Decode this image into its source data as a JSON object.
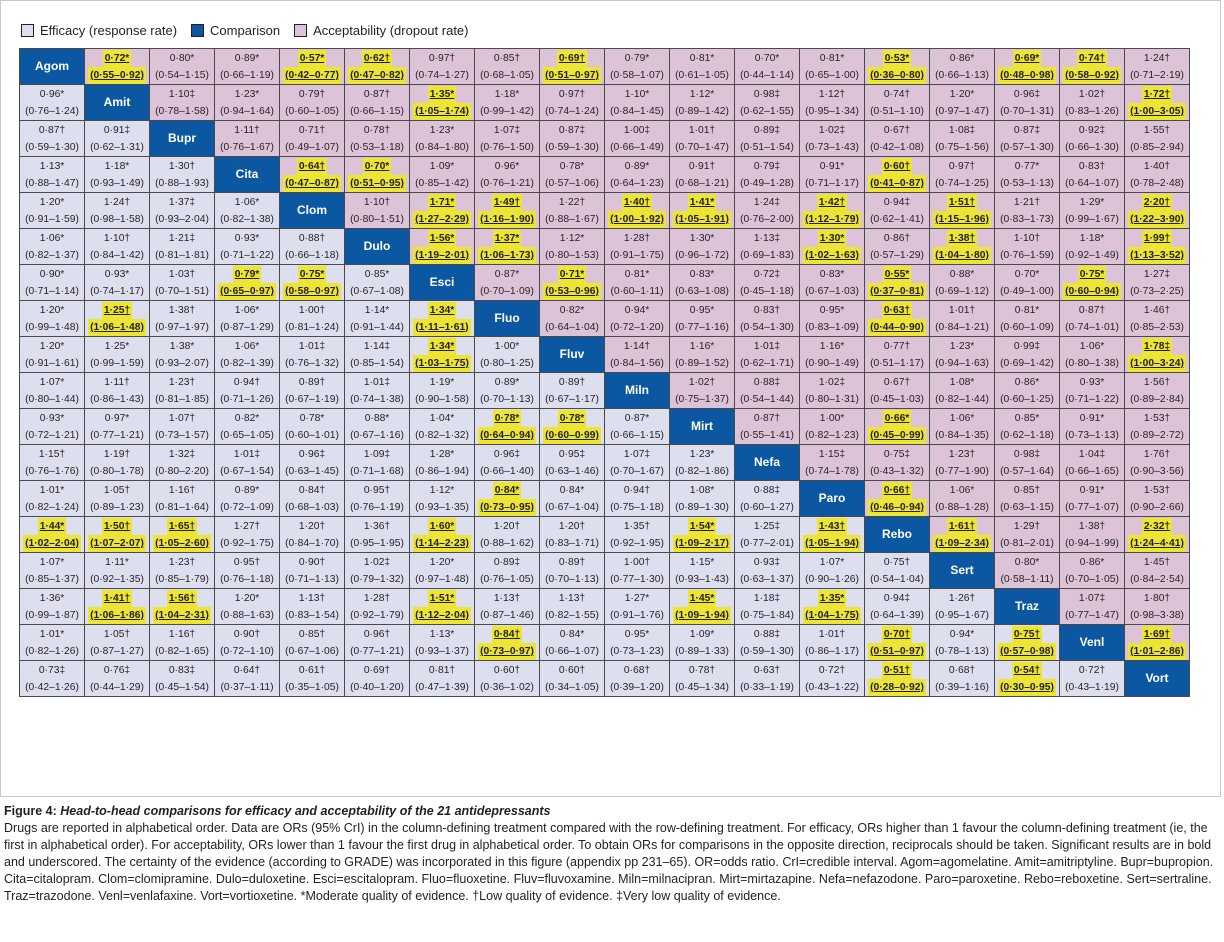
{
  "legend": {
    "efficacy_label": "Efficacy (response rate)",
    "comparison_label": "Comparison",
    "acceptability_label": "Acceptability (dropout rate)"
  },
  "colors": {
    "efficacy": "#dddfef",
    "comparison": "#0b57a1",
    "acceptability": "#ddc3d8",
    "highlight": "#ede534"
  },
  "drugs": [
    "Agom",
    "Amit",
    "Bupr",
    "Cita",
    "Clom",
    "Dulo",
    "Esci",
    "Fluo",
    "Fluv",
    "Miln",
    "Mirt",
    "Nefa",
    "Paro",
    "Rebo",
    "Sert",
    "Traz",
    "Venl",
    "Vort"
  ],
  "rows": [
    [
      [
        "",
        ""
      ],
      [
        "0·72*",
        "(0·55–0·92)"
      ],
      [
        "0·80*",
        "(0·54–1·15)"
      ],
      [
        "0·89*",
        "(0·66–1·19)"
      ],
      [
        "0·57*",
        "(0·42–0·77)"
      ],
      [
        "0·62†",
        "(0·47–0·82)"
      ],
      [
        "0·97†",
        "(0·74–1·27)"
      ],
      [
        "0·85†",
        "(0·68–1·05)"
      ],
      [
        "0·69†",
        "(0·51–0·97)"
      ],
      [
        "0·79*",
        "(0·58–1·07)"
      ],
      [
        "0·81*",
        "(0·61–1·05)"
      ],
      [
        "0·70*",
        "(0·44–1·14)"
      ],
      [
        "0·81*",
        "(0·65–1·00)"
      ],
      [
        "0·53*",
        "(0·36–0·80)"
      ],
      [
        "0·86*",
        "(0·66–1·13)"
      ],
      [
        "0·69*",
        "(0·48–0·98)"
      ],
      [
        "0·74†",
        "(0·58–0·92)"
      ],
      [
        "1·24†",
        "(0·71–2·19)"
      ]
    ],
    [
      [
        "0·96*",
        "(0·76–1·24)"
      ],
      [
        "",
        ""
      ],
      [
        "1·10‡",
        "(0·78–1·58)"
      ],
      [
        "1·23*",
        "(0·94–1·64)"
      ],
      [
        "0·79†",
        "(0·60–1·05)"
      ],
      [
        "0·87†",
        "(0·66–1·15)"
      ],
      [
        "1·35*",
        "(1·05–1·74)"
      ],
      [
        "1·18*",
        "(0·99–1·42)"
      ],
      [
        "0·97†",
        "(0·74–1·24)"
      ],
      [
        "1·10*",
        "(0·84–1·45)"
      ],
      [
        "1·12*",
        "(0·89–1·42)"
      ],
      [
        "0·98‡",
        "(0·62–1·55)"
      ],
      [
        "1·12†",
        "(0·95–1·34)"
      ],
      [
        "0·74†",
        "(0·51–1·10)"
      ],
      [
        "1·20*",
        "(0·97–1·47)"
      ],
      [
        "0·96‡",
        "(0·70–1·31)"
      ],
      [
        "1·02†",
        "(0·83–1·26)"
      ],
      [
        "1·72†",
        "(1·00–3·05)"
      ]
    ],
    [
      [
        "0·87†",
        "(0·59–1·30)"
      ],
      [
        "0·91‡",
        "(0·62–1·31)"
      ],
      [
        "",
        ""
      ],
      [
        "1·11†",
        "(0·76–1·67)"
      ],
      [
        "0·71†",
        "(0·49–1·07)"
      ],
      [
        "0·78†",
        "(0·53–1·18)"
      ],
      [
        "1·23*",
        "(0·84–1·80)"
      ],
      [
        "1·07‡",
        "(0·76–1·50)"
      ],
      [
        "0·87‡",
        "(0·59–1·30)"
      ],
      [
        "1·00‡",
        "(0·66–1·49)"
      ],
      [
        "1·01†",
        "(0·70–1·47)"
      ],
      [
        "0·89‡",
        "(0·51–1·54)"
      ],
      [
        "1·02‡",
        "(0·73–1·43)"
      ],
      [
        "0·67†",
        "(0·42–1·08)"
      ],
      [
        "1·08‡",
        "(0·75–1·56)"
      ],
      [
        "0·87‡",
        "(0·57–1·30)"
      ],
      [
        "0·92‡",
        "(0·66–1·30)"
      ],
      [
        "1·55†",
        "(0·85–2·94)"
      ]
    ],
    [
      [
        "1·13*",
        "(0·88–1·47)"
      ],
      [
        "1·18*",
        "(0·93–1·49)"
      ],
      [
        "1·30†",
        "(0·88–1·93)"
      ],
      [
        "",
        ""
      ],
      [
        "0·64†",
        "(0·47–0·87)"
      ],
      [
        "0·70*",
        "(0·51–0·95)"
      ],
      [
        "1·09*",
        "(0·85–1·42)"
      ],
      [
        "0·96*",
        "(0·76–1·21)"
      ],
      [
        "0·78*",
        "(0·57–1·06)"
      ],
      [
        "0·89*",
        "(0·64–1·23)"
      ],
      [
        "0·91†",
        "(0·68–1·21)"
      ],
      [
        "0·79‡",
        "(0·49–1·28)"
      ],
      [
        "0·91*",
        "(0·71–1·17)"
      ],
      [
        "0·60†",
        "(0·41–0·87)"
      ],
      [
        "0·97†",
        "(0·74–1·25)"
      ],
      [
        "0·77*",
        "(0·53–1·13)"
      ],
      [
        "0·83†",
        "(0·64–1·07)"
      ],
      [
        "1·40†",
        "(0·78–2·48)"
      ]
    ],
    [
      [
        "1·20*",
        "(0·91–1·59)"
      ],
      [
        "1·24†",
        "(0·98–1·58)"
      ],
      [
        "1·37‡",
        "(0·93–2·04)"
      ],
      [
        "1·06*",
        "(0·82–1·38)"
      ],
      [
        "",
        ""
      ],
      [
        "1·10†",
        "(0·80–1·51)"
      ],
      [
        "1·71*",
        "(1·27–2·29)"
      ],
      [
        "1·49†",
        "(1·16–1·90)"
      ],
      [
        "1·22†",
        "(0·88–1·67)"
      ],
      [
        "1·40†",
        "(1·00–1·92)"
      ],
      [
        "1·41*",
        "(1·05–1·91)"
      ],
      [
        "1·24‡",
        "(0·76–2·00)"
      ],
      [
        "1·42†",
        "(1·12–1·79)"
      ],
      [
        "0·94‡",
        "(0·62–1·41)"
      ],
      [
        "1·51†",
        "(1·15–1·96)"
      ],
      [
        "1·21†",
        "(0·83–1·73)"
      ],
      [
        "1·29*",
        "(0·99–1·67)"
      ],
      [
        "2·20†",
        "(1·22–3·90)"
      ]
    ],
    [
      [
        "1·06*",
        "(0·82–1·37)"
      ],
      [
        "1·10†",
        "(0·84–1·42)"
      ],
      [
        "1·21‡",
        "(0·81–1·81)"
      ],
      [
        "0·93*",
        "(0·71–1·22)"
      ],
      [
        "0·88†",
        "(0·66–1·18)"
      ],
      [
        "",
        ""
      ],
      [
        "1·56*",
        "(1·19–2·01)"
      ],
      [
        "1·37*",
        "(1·06–1·73)"
      ],
      [
        "1·12*",
        "(0·80–1·53)"
      ],
      [
        "1·28†",
        "(0·91–1·75)"
      ],
      [
        "1·30*",
        "(0·96–1·72)"
      ],
      [
        "1·13‡",
        "(0·69–1·83)"
      ],
      [
        "1·30*",
        "(1·02–1·63)"
      ],
      [
        "0·86†",
        "(0·57–1·29)"
      ],
      [
        "1·38†",
        "(1·04–1·80)"
      ],
      [
        "1·10†",
        "(0·76–1·59)"
      ],
      [
        "1·18*",
        "(0·92–1·49)"
      ],
      [
        "1·99†",
        "(1·13–3·52)"
      ]
    ],
    [
      [
        "0·90*",
        "(0·71–1·14)"
      ],
      [
        "0·93*",
        "(0·74–1·17)"
      ],
      [
        "1·03†",
        "(0·70–1·51)"
      ],
      [
        "0·79*",
        "(0·65–0·97)"
      ],
      [
        "0·75*",
        "(0·58–0·97)"
      ],
      [
        "0·85*",
        "(0·67–1·08)"
      ],
      [
        "",
        ""
      ],
      [
        "0·87*",
        "(0·70–1·09)"
      ],
      [
        "0·71*",
        "(0·53–0·96)"
      ],
      [
        "0·81*",
        "(0·60–1·11)"
      ],
      [
        "0·83*",
        "(0·63–1·08)"
      ],
      [
        "0·72‡",
        "(0·45–1·18)"
      ],
      [
        "0·83*",
        "(0·67–1·03)"
      ],
      [
        "0·55*",
        "(0·37–0·81)"
      ],
      [
        "0·88*",
        "(0·69–1·12)"
      ],
      [
        "0·70*",
        "(0·49–1·00)"
      ],
      [
        "0·75*",
        "(0·60–0·94)"
      ],
      [
        "1·27‡",
        "(0·73–2·25)"
      ]
    ],
    [
      [
        "1·20*",
        "(0·99–1·48)"
      ],
      [
        "1·25†",
        "(1·06–1·48)"
      ],
      [
        "1·38†",
        "(0·97–1·97)"
      ],
      [
        "1·06*",
        "(0·87–1·29)"
      ],
      [
        "1·00†",
        "(0·81–1·24)"
      ],
      [
        "1·14*",
        "(0·91–1·44)"
      ],
      [
        "1·34*",
        "(1·11–1·61)"
      ],
      [
        "",
        ""
      ],
      [
        "0·82*",
        "(0·64–1·04)"
      ],
      [
        "0·94*",
        "(0·72–1·20)"
      ],
      [
        "0·95*",
        "(0·77–1·16)"
      ],
      [
        "0·83†",
        "(0·54–1·30)"
      ],
      [
        "0·95*",
        "(0·83–1·09)"
      ],
      [
        "0·63†",
        "(0·44–0·90)"
      ],
      [
        "1·01†",
        "(0·84–1·21)"
      ],
      [
        "0·81*",
        "(0·60–1·09)"
      ],
      [
        "0·87†",
        "(0·74–1·01)"
      ],
      [
        "1·46†",
        "(0·85–2·53)"
      ]
    ],
    [
      [
        "1·20*",
        "(0·91–1·61)"
      ],
      [
        "1·25*",
        "(0·99–1·59)"
      ],
      [
        "1·38*",
        "(0·93–2·07)"
      ],
      [
        "1·06*",
        "(0·82–1·39)"
      ],
      [
        "1·01‡",
        "(0·76–1·32)"
      ],
      [
        "1·14‡",
        "(0·85–1·54)"
      ],
      [
        "1·34*",
        "(1·03–1·75)"
      ],
      [
        "1·00*",
        "(0·80–1·25)"
      ],
      [
        "",
        ""
      ],
      [
        "1·14†",
        "(0·84–1·56)"
      ],
      [
        "1·16*",
        "(0·89–1·52)"
      ],
      [
        "1·01‡",
        "(0·62–1·71)"
      ],
      [
        "1·16*",
        "(0·90–1·49)"
      ],
      [
        "0·77†",
        "(0·51–1·17)"
      ],
      [
        "1·23*",
        "(0·94–1·63)"
      ],
      [
        "0·99‡",
        "(0·69–1·42)"
      ],
      [
        "1·06*",
        "(0·80–1·38)"
      ],
      [
        "1·78‡",
        "(1·00–3·24)"
      ]
    ],
    [
      [
        "1·07*",
        "(0·80–1·44)"
      ],
      [
        "1·11†",
        "(0·86–1·43)"
      ],
      [
        "1·23†",
        "(0·81–1·85)"
      ],
      [
        "0·94†",
        "(0·71–1·26)"
      ],
      [
        "0·89†",
        "(0·67–1·19)"
      ],
      [
        "1·01‡",
        "(0·74–1·38)"
      ],
      [
        "1·19*",
        "(0·90–1·58)"
      ],
      [
        "0·89*",
        "(0·70–1·13)"
      ],
      [
        "0·89†",
        "(0·67–1·17)"
      ],
      [
        "",
        ""
      ],
      [
        "1·02†",
        "(0·75–1·37)"
      ],
      [
        "0·88‡",
        "(0·54–1·44)"
      ],
      [
        "1·02‡",
        "(0·80–1·31)"
      ],
      [
        "0·67†",
        "(0·45–1·03)"
      ],
      [
        "1·08*",
        "(0·82–1·44)"
      ],
      [
        "0·86*",
        "(0·60–1·25)"
      ],
      [
        "0·93*",
        "(0·71–1·22)"
      ],
      [
        "1·56†",
        "(0·89–2·84)"
      ]
    ],
    [
      [
        "0·93*",
        "(0·72–1·21)"
      ],
      [
        "0·97*",
        "(0·77–1·21)"
      ],
      [
        "1·07†",
        "(0·73–1·57)"
      ],
      [
        "0·82*",
        "(0·65–1·05)"
      ],
      [
        "0·78*",
        "(0·60–1·01)"
      ],
      [
        "0·88*",
        "(0·67–1·16)"
      ],
      [
        "1·04*",
        "(0·82–1·32)"
      ],
      [
        "0·78*",
        "(0·64–0·94)"
      ],
      [
        "0·78*",
        "(0·60–0·99)"
      ],
      [
        "0·87*",
        "(0·66–1·15)"
      ],
      [
        "",
        ""
      ],
      [
        "0·87†",
        "(0·55–1·41)"
      ],
      [
        "1·00*",
        "(0·82–1·23)"
      ],
      [
        "0·66*",
        "(0·45–0·99)"
      ],
      [
        "1·06*",
        "(0·84–1·35)"
      ],
      [
        "0·85*",
        "(0·62–1·18)"
      ],
      [
        "0·91*",
        "(0·73–1·13)"
      ],
      [
        "1·53†",
        "(0·89–2·72)"
      ]
    ],
    [
      [
        "1·15†",
        "(0·76–1·76)"
      ],
      [
        "1·19†",
        "(0·80–1·78)"
      ],
      [
        "1·32‡",
        "(0·80–2·20)"
      ],
      [
        "1·01‡",
        "(0·67–1·54)"
      ],
      [
        "0·96‡",
        "(0·63–1·45)"
      ],
      [
        "1·09‡",
        "(0·71–1·68)"
      ],
      [
        "1·28*",
        "(0·86–1·94)"
      ],
      [
        "0·96‡",
        "(0·66–1·40)"
      ],
      [
        "0·95‡",
        "(0·63–1·46)"
      ],
      [
        "1·07‡",
        "(0·70–1·67)"
      ],
      [
        "1·23*",
        "(0·82–1·86)"
      ],
      [
        "",
        ""
      ],
      [
        "1·15‡",
        "(0·74–1·78)"
      ],
      [
        "0·75‡",
        "(0·43–1·32)"
      ],
      [
        "1·23†",
        "(0·77–1·90)"
      ],
      [
        "0·98‡",
        "(0·57–1·64)"
      ],
      [
        "1·04‡",
        "(0·66–1·65)"
      ],
      [
        "1·76†",
        "(0·90–3·56)"
      ]
    ],
    [
      [
        "1·01*",
        "(0·82–1·24)"
      ],
      [
        "1·05†",
        "(0·89–1·23)"
      ],
      [
        "1·16†",
        "(0·81–1·64)"
      ],
      [
        "0·89*",
        "(0·72–1·09)"
      ],
      [
        "0·84†",
        "(0·68–1·03)"
      ],
      [
        "0·95†",
        "(0·76–1·19)"
      ],
      [
        "1·12*",
        "(0·93–1·35)"
      ],
      [
        "0·84*",
        "(0·73–0·95)"
      ],
      [
        "0·84*",
        "(0·67–1·04)"
      ],
      [
        "0·94†",
        "(0·75–1·18)"
      ],
      [
        "1·08*",
        "(0·89–1·30)"
      ],
      [
        "0·88‡",
        "(0·60–1·27)"
      ],
      [
        "",
        ""
      ],
      [
        "0·66†",
        "(0·46–0·94)"
      ],
      [
        "1·06*",
        "(0·88–1·28)"
      ],
      [
        "0·85†",
        "(0·63–1·15)"
      ],
      [
        "0·91*",
        "(0·77–1·07)"
      ],
      [
        "1·53†",
        "(0·90–2·66)"
      ]
    ],
    [
      [
        "1·44*",
        "(1·02–2·04)"
      ],
      [
        "1·50†",
        "(1·07–2·07)"
      ],
      [
        "1·65†",
        "(1·05–2·60)"
      ],
      [
        "1·27†",
        "(0·92–1·75)"
      ],
      [
        "1·20†",
        "(0·84–1·70)"
      ],
      [
        "1·36†",
        "(0·95–1·95)"
      ],
      [
        "1·60*",
        "(1·14–2·23)"
      ],
      [
        "1·20†",
        "(0·88–1·62)"
      ],
      [
        "1·20†",
        "(0·83–1·71)"
      ],
      [
        "1·35†",
        "(0·92–1·95)"
      ],
      [
        "1·54*",
        "(1·09–2·17)"
      ],
      [
        "1·25‡",
        "(0·77–2·01)"
      ],
      [
        "1·43†",
        "(1·05–1·94)"
      ],
      [
        "",
        ""
      ],
      [
        "1·61†",
        "(1·09–2·34)"
      ],
      [
        "1·29†",
        "(0·81–2·01)"
      ],
      [
        "1·38†",
        "(0·94–1·99)"
      ],
      [
        "2·32†",
        "(1·24–4·41)"
      ]
    ],
    [
      [
        "1·07*",
        "(0·85–1·37)"
      ],
      [
        "1·11*",
        "(0·92–1·35)"
      ],
      [
        "1·23†",
        "(0·85–1·79)"
      ],
      [
        "0·95†",
        "(0·76–1·18)"
      ],
      [
        "0·90†",
        "(0·71–1·13)"
      ],
      [
        "1·02‡",
        "(0·79–1·32)"
      ],
      [
        "1·20*",
        "(0·97–1·48)"
      ],
      [
        "0·89‡",
        "(0·76–1·05)"
      ],
      [
        "0·89†",
        "(0·70–1·13)"
      ],
      [
        "1·00†",
        "(0·77–1·30)"
      ],
      [
        "1·15*",
        "(0·93–1·43)"
      ],
      [
        "0·93‡",
        "(0·63–1·37)"
      ],
      [
        "1·07*",
        "(0·90–1·26)"
      ],
      [
        "0·75†",
        "(0·54–1·04)"
      ],
      [
        "",
        ""
      ],
      [
        "0·80*",
        "(0·58–1·11)"
      ],
      [
        "0·86*",
        "(0·70–1·05)"
      ],
      [
        "1·45†",
        "(0·84–2·54)"
      ]
    ],
    [
      [
        "1·36*",
        "(0·99–1·87)"
      ],
      [
        "1·41†",
        "(1·06–1·86)"
      ],
      [
        "1·56†",
        "(1·04–2·31)"
      ],
      [
        "1·20*",
        "(0·88–1·63)"
      ],
      [
        "1·13†",
        "(0·83–1·54)"
      ],
      [
        "1·28†",
        "(0·92–1·79)"
      ],
      [
        "1·51*",
        "(1·12–2·04)"
      ],
      [
        "1·13†",
        "(0·87–1·46)"
      ],
      [
        "1·13†",
        "(0·82–1·55)"
      ],
      [
        "1·27*",
        "(0·91–1·76)"
      ],
      [
        "1·45*",
        "(1·09–1·94)"
      ],
      [
        "1·18‡",
        "(0·75–1·84)"
      ],
      [
        "1·35*",
        "(1·04–1·75)"
      ],
      [
        "0·94‡",
        "(0·64–1·39)"
      ],
      [
        "1·26†",
        "(0·95–1·67)"
      ],
      [
        "",
        ""
      ],
      [
        "1·07‡",
        "(0·77–1·47)"
      ],
      [
        "1·80†",
        "(0·98–3·38)"
      ]
    ],
    [
      [
        "1·01*",
        "(0·82–1·26)"
      ],
      [
        "1·05†",
        "(0·87–1·27)"
      ],
      [
        "1·16†",
        "(0·82–1·65)"
      ],
      [
        "0·90†",
        "(0·72–1·10)"
      ],
      [
        "0·85†",
        "(0·67–1·06)"
      ],
      [
        "0·96†",
        "(0·77–1·21)"
      ],
      [
        "1·13*",
        "(0·93–1·37)"
      ],
      [
        "0·84†",
        "(0·73–0·97)"
      ],
      [
        "0·84*",
        "(0·66–1·07)"
      ],
      [
        "0·95*",
        "(0·73–1·23)"
      ],
      [
        "1·09*",
        "(0·89–1·33)"
      ],
      [
        "0·88‡",
        "(0·59–1·30)"
      ],
      [
        "1·01†",
        "(0·86–1·17)"
      ],
      [
        "0·70†",
        "(0·51–0·97)"
      ],
      [
        "0·94*",
        "(0·78–1·13)"
      ],
      [
        "0·75†",
        "(0·57–0·98)"
      ],
      [
        "",
        ""
      ],
      [
        "1·69†",
        "(1·01–2·86)"
      ]
    ],
    [
      [
        "0·73‡",
        "(0·42–1·26)"
      ],
      [
        "0·76‡",
        "(0·44–1·29)"
      ],
      [
        "0·83‡",
        "(0·45–1·54)"
      ],
      [
        "0·64†",
        "(0·37–1·11)"
      ],
      [
        "0·61†",
        "(0·35–1·05)"
      ],
      [
        "0·69†",
        "(0·40–1·20)"
      ],
      [
        "0·81†",
        "(0·47–1·39)"
      ],
      [
        "0·60†",
        "(0·36–1·02)"
      ],
      [
        "0·60†",
        "(0·34–1·05)"
      ],
      [
        "0·68†",
        "(0·39–1·20)"
      ],
      [
        "0·78†",
        "(0·45–1·34)"
      ],
      [
        "0·63†",
        "(0·33–1·19)"
      ],
      [
        "0·72†",
        "(0·43–1·22)"
      ],
      [
        "0·51†",
        "(0·28–0·92)"
      ],
      [
        "0·68†",
        "(0·39–1·16)"
      ],
      [
        "0·54†",
        "(0·30–0·95)"
      ],
      [
        "0·72†",
        "(0·43–1·19)"
      ],
      [
        "",
        ""
      ]
    ]
  ],
  "caption": {
    "figure_label": "Figure 4:",
    "title": "Head-to-head comparisons for efficacy and acceptability of the 21 antidepressants",
    "body": "Drugs are reported in alphabetical order. Data are ORs (95% CrI) in the column-defining treatment compared with the row-defining treatment. For efficacy, ORs higher than 1 favour the column-defining treatment (ie, the first in alphabetical order). For acceptability, ORs lower than 1 favour the first drug in alphabetical order. To obtain ORs for comparisons in the opposite direction, reciprocals should be taken. Significant results are in bold and underscored. The certainty of the evidence (according to GRADE) was incorporated in this figure (appendix pp 231–65). OR=odds ratio. CrI=credible interval. Agom=agomelatine. Amit=amitriptyline. Bupr=bupropion. Cita=citalopram. Clom=clomipramine. Dulo=duloxetine. Esci=escitalopram. Fluo=fluoxetine. Fluv=fluvoxamine. Miln=milnacipran. Mirt=mirtazapine. Nefa=nefazodone. Paro=paroxetine. Rebo=reboxetine. Sert=sertraline. Traz=trazodone. Venl=venlafaxine. Vort=vortioxetine. *Moderate quality of evidence. †Low quality of evidence. ‡Very low quality of evidence."
  }
}
